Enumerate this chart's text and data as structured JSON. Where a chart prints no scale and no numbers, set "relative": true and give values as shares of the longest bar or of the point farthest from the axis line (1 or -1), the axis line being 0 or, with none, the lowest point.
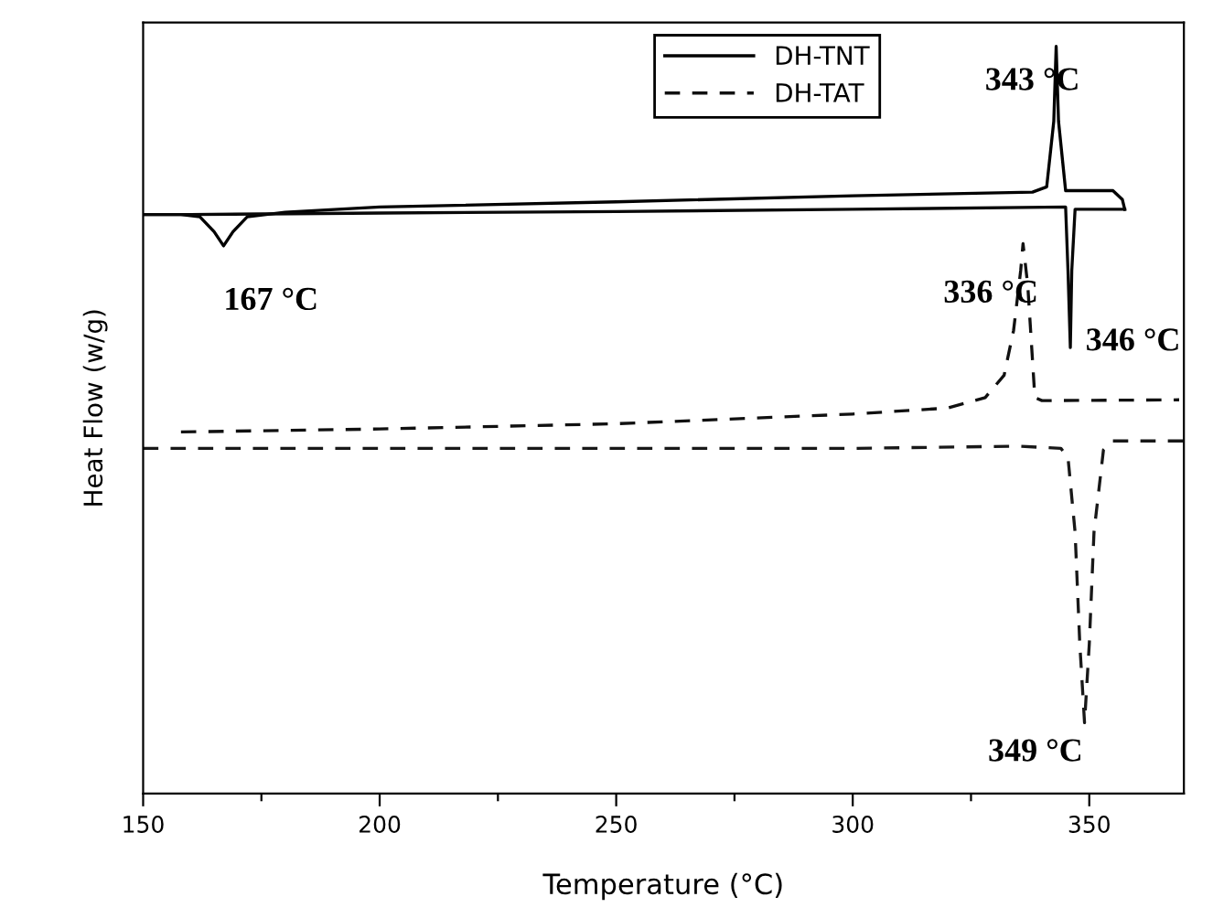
{
  "chart_data": {
    "type": "line",
    "relative": true,
    "xlabel": "Temperature (°C)",
    "ylabel": "Heat Flow (w/g)",
    "xlim": [
      150,
      370
    ],
    "xticks": [
      150,
      {
        "value": 175,
        "label": null
      },
      200,
      {
        "value": 225,
        "label": null
      },
      250,
      {
        "value": 275,
        "label": null
      },
      300,
      {
        "value": 325,
        "label": null
      },
      350
    ],
    "tick_labels": "x",
    "legend": "top right",
    "grid": false,
    "marker": "none",
    "series": [
      {
        "name": "DH-TNT",
        "color": "#000000",
        "line_style": "solid",
        "x": [
          150,
          158,
          162,
          165,
          167,
          169,
          172,
          180,
          200,
          250,
          300,
          338,
          341,
          342.5,
          343,
          343.5,
          345,
          355,
          357,
          357.5
        ],
        "values": [
          0.775,
          0.775,
          0.772,
          0.752,
          0.733,
          0.752,
          0.772,
          0.778,
          0.785,
          0.792,
          0.8,
          0.805,
          0.812,
          0.9,
          1.0,
          0.9,
          0.807,
          0.807,
          0.795,
          0.782
        ]
      },
      {
        "color": "#080808",
        "line_style": "solid",
        "x": [
          150,
          160,
          200,
          250,
          300,
          345,
          345.5,
          346,
          346.3,
          347,
          350,
          357.5
        ],
        "values": [
          0.775,
          0.775,
          0.777,
          0.779,
          0.782,
          0.785,
          0.7,
          0.597,
          0.7,
          0.782,
          0.782,
          0.782
        ]
      },
      {
        "name": "DH-TAT",
        "color": "#101010",
        "line_style": "dashed",
        "x": [
          158,
          200,
          250,
          300,
          320,
          328,
          332,
          334,
          335.5,
          336,
          337,
          338,
          338.5,
          340,
          369
        ],
        "values": [
          0.484,
          0.488,
          0.495,
          0.508,
          0.516,
          0.53,
          0.56,
          0.62,
          0.7,
          0.736,
          0.68,
          0.58,
          0.53,
          0.526,
          0.527
        ]
      },
      {
        "color": "#181818",
        "line_style": "dashed",
        "x": [
          150,
          250,
          300,
          335,
          344,
          345.5,
          347,
          348,
          349,
          350,
          351,
          353,
          355,
          370
        ],
        "values": [
          0.462,
          0.462,
          0.462,
          0.465,
          0.462,
          0.45,
          0.35,
          0.2,
          0.095,
          0.2,
          0.35,
          0.46,
          0.472,
          0.472
        ]
      }
    ],
    "annotations": [
      {
        "text": "343 °C",
        "x": 343,
        "y": 1.0
      },
      {
        "text": "167 °C",
        "x": 167,
        "y": 0.733
      },
      {
        "text": "346 °C",
        "x": 346,
        "y": 0.597
      },
      {
        "text": "336 °C",
        "x": 336,
        "y": 0.736
      },
      {
        "text": "349 °C",
        "x": 349,
        "y": 0.095
      }
    ]
  }
}
